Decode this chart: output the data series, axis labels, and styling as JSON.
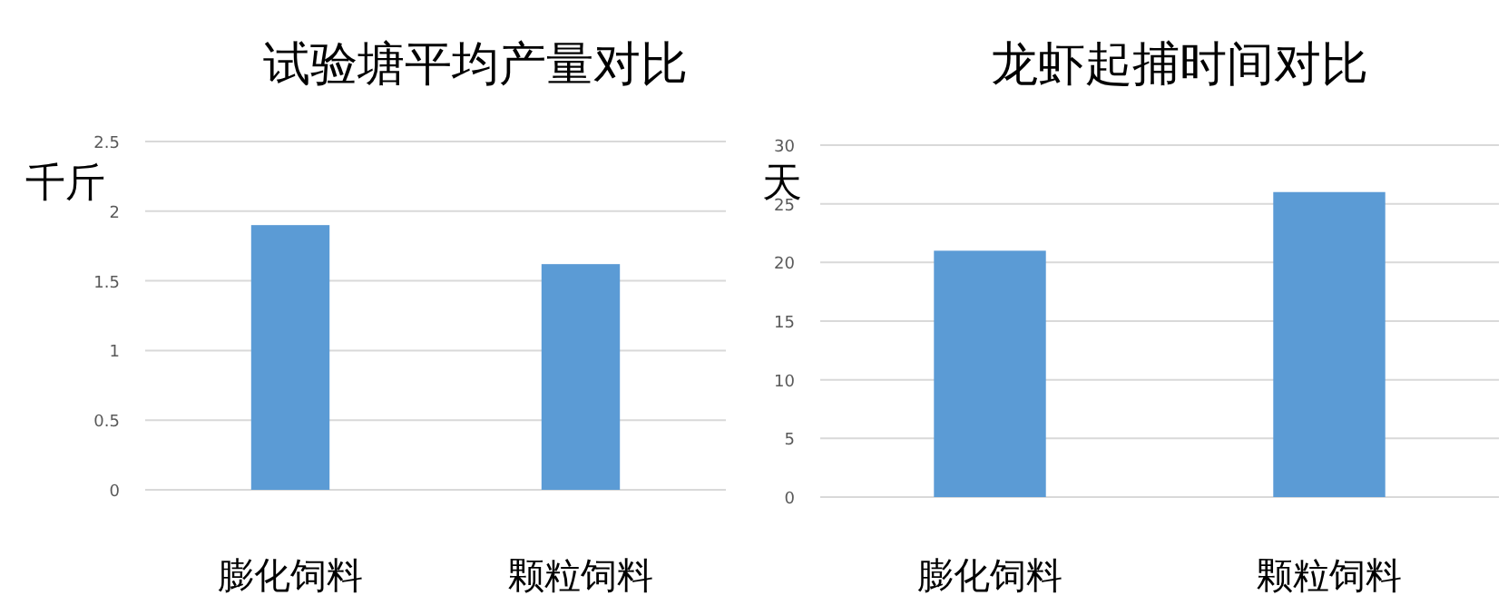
{
  "chart_data": [
    {
      "type": "bar",
      "title": "试验塘平均产量对比",
      "ylabel": "千斤",
      "categories": [
        "膨化饲料",
        "颗粒饲料"
      ],
      "values": [
        1.9,
        1.62
      ],
      "color": "#5b9bd5",
      "ylim": [
        0,
        2.5
      ],
      "yticks": [
        0,
        0.5,
        1,
        1.5,
        2,
        2.5
      ],
      "grid": "y"
    },
    {
      "type": "bar",
      "title": "龙虾起捕时间对比",
      "ylabel": "天",
      "categories": [
        "膨化饲料",
        "颗粒饲料"
      ],
      "values": [
        21,
        26
      ],
      "color": "#5b9bd5",
      "ylim": [
        0,
        30
      ],
      "yticks": [
        0,
        5,
        10,
        15,
        20,
        25,
        30
      ],
      "grid": "y"
    }
  ]
}
